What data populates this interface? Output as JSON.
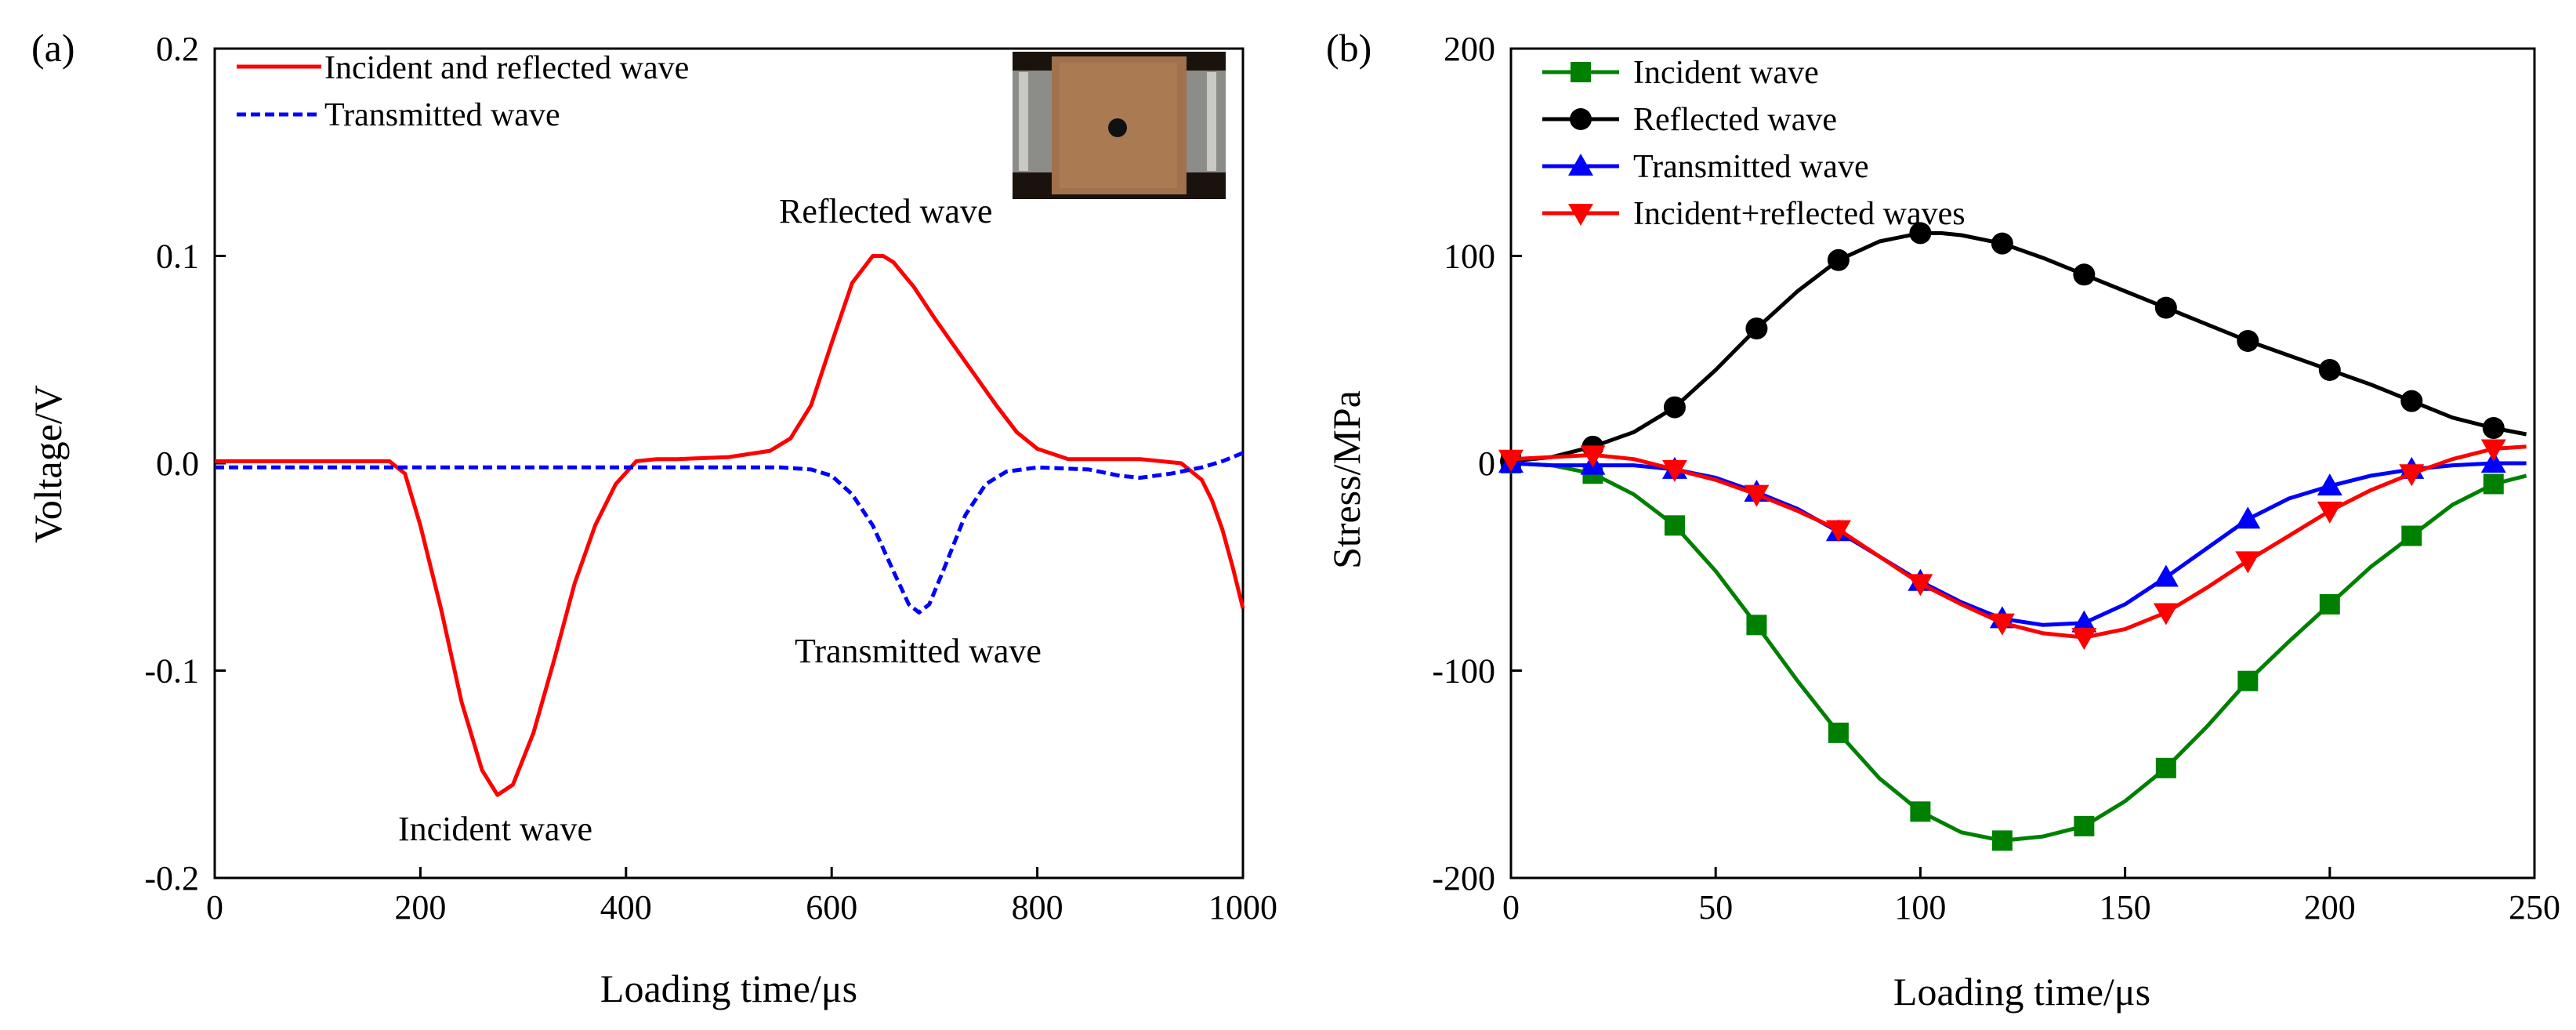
{
  "panels": {
    "a": "(a)",
    "b": "(b)"
  },
  "inset_photo": {
    "kind": "photo of specimen between bars",
    "colors": {
      "specimen": "#a0714c",
      "bar": "#8c8c88",
      "background": "#1a120c",
      "hole": "#111111"
    }
  },
  "chart_data": [
    {
      "type": "line",
      "panel": "(a)",
      "xlabel": "Loading time/μs",
      "ylabel": "Voltage/V",
      "xlim": [
        0,
        1000
      ],
      "ylim": [
        -0.2,
        0.2
      ],
      "xticks": [
        "0",
        "200",
        "400",
        "600",
        "800",
        "1000"
      ],
      "yticks": [
        "-0.2",
        "-0.1",
        "0.0",
        "0.1",
        "0.2"
      ],
      "grid": false,
      "legend_position": "top-left",
      "annotations": [
        "Reflected wave",
        "Transmitted wave",
        "Incident wave"
      ],
      "series": [
        {
          "name": "Incident and reflected wave",
          "color": "#ff0000",
          "dash": "solid",
          "x": [
            0,
            50,
            100,
            150,
            170,
            185,
            200,
            220,
            240,
            260,
            275,
            290,
            310,
            330,
            350,
            370,
            390,
            410,
            430,
            450,
            500,
            540,
            560,
            580,
            600,
            620,
            640,
            650,
            660,
            680,
            700,
            720,
            740,
            760,
            780,
            800,
            830,
            860,
            900,
            940,
            960,
            970,
            980,
            990,
            1000
          ],
          "y": [
            0.001,
            0.001,
            0.001,
            0.001,
            0.001,
            -0.005,
            -0.03,
            -0.07,
            -0.115,
            -0.148,
            -0.16,
            -0.155,
            -0.13,
            -0.095,
            -0.058,
            -0.03,
            -0.01,
            0.001,
            0.002,
            0.002,
            0.003,
            0.006,
            0.012,
            0.028,
            0.058,
            0.087,
            0.1,
            0.1,
            0.097,
            0.085,
            0.07,
            0.056,
            0.042,
            0.028,
            0.015,
            0.007,
            0.002,
            0.002,
            0.002,
            0.0,
            -0.008,
            -0.018,
            -0.032,
            -0.05,
            -0.07
          ]
        },
        {
          "name": "Transmitted wave",
          "color": "#0000ff",
          "dash": "dashed",
          "x": [
            0,
            100,
            200,
            300,
            400,
            500,
            550,
            580,
            600,
            620,
            640,
            660,
            675,
            685,
            695,
            710,
            730,
            750,
            770,
            800,
            850,
            880,
            900,
            930,
            960,
            980,
            1000
          ],
          "y": [
            -0.002,
            -0.002,
            -0.002,
            -0.002,
            -0.002,
            -0.002,
            -0.002,
            -0.003,
            -0.006,
            -0.015,
            -0.03,
            -0.052,
            -0.068,
            -0.072,
            -0.068,
            -0.05,
            -0.025,
            -0.01,
            -0.004,
            -0.002,
            -0.003,
            -0.006,
            -0.007,
            -0.005,
            -0.002,
            0.001,
            0.005
          ]
        }
      ]
    },
    {
      "type": "line",
      "panel": "(b)",
      "xlabel": "Loading time/μs",
      "ylabel": "Stress/MPa",
      "xlim": [
        0,
        250
      ],
      "ylim": [
        -200,
        200
      ],
      "xticks": [
        "0",
        "50",
        "100",
        "150",
        "200",
        "250"
      ],
      "yticks": [
        "-200",
        "-100",
        "0",
        "100",
        "200"
      ],
      "grid": false,
      "legend_position": "top-left",
      "series": [
        {
          "name": "Incident wave",
          "color": "#008000",
          "marker": "square",
          "x": [
            0,
            10,
            20,
            30,
            40,
            50,
            60,
            70,
            80,
            90,
            100,
            110,
            120,
            130,
            140,
            150,
            160,
            170,
            180,
            190,
            200,
            210,
            220,
            230,
            240,
            248
          ],
          "y": [
            0,
            -1,
            -5,
            -15,
            -30,
            -52,
            -78,
            -105,
            -130,
            -152,
            -168,
            -178,
            -182,
            -180,
            -175,
            -163,
            -147,
            -127,
            -105,
            -86,
            -68,
            -50,
            -35,
            -20,
            -10,
            -6
          ],
          "marker_x": [
            0,
            20,
            40,
            60,
            80,
            100,
            120,
            140,
            160,
            180,
            200,
            220,
            240
          ]
        },
        {
          "name": "Reflected wave",
          "color": "#000000",
          "marker": "circle",
          "x": [
            0,
            10,
            20,
            30,
            40,
            50,
            60,
            70,
            80,
            90,
            100,
            105,
            110,
            120,
            130,
            140,
            150,
            160,
            170,
            180,
            190,
            200,
            210,
            220,
            230,
            240,
            248
          ],
          "y": [
            1,
            3,
            8,
            15,
            27,
            45,
            65,
            83,
            98,
            107,
            111,
            111,
            110,
            106,
            99,
            91,
            83,
            75,
            67,
            59,
            52,
            45,
            38,
            30,
            22,
            17,
            14
          ],
          "marker_x": [
            0,
            20,
            40,
            60,
            80,
            100,
            120,
            140,
            160,
            180,
            200,
            220,
            240
          ]
        },
        {
          "name": "Transmitted wave",
          "color": "#0000ff",
          "marker": "triangle-up",
          "x": [
            0,
            10,
            20,
            30,
            40,
            50,
            60,
            70,
            80,
            90,
            100,
            110,
            120,
            130,
            140,
            150,
            160,
            170,
            180,
            190,
            200,
            210,
            220,
            230,
            240,
            248
          ],
          "y": [
            0,
            -1,
            -1,
            -1,
            -3,
            -7,
            -14,
            -22,
            -33,
            -45,
            -57,
            -67,
            -75,
            -78,
            -77,
            -68,
            -55,
            -41,
            -27,
            -17,
            -11,
            -6,
            -3,
            -1,
            0,
            0
          ],
          "marker_x": [
            0,
            20,
            40,
            60,
            80,
            100,
            120,
            140,
            160,
            180,
            200,
            220,
            240
          ]
        },
        {
          "name": "Incident+reflected waves",
          "color": "#ff0000",
          "marker": "triangle-down",
          "x": [
            0,
            10,
            20,
            30,
            40,
            50,
            60,
            70,
            80,
            90,
            100,
            110,
            120,
            130,
            140,
            150,
            160,
            170,
            180,
            190,
            200,
            210,
            220,
            230,
            240,
            248
          ],
          "y": [
            2,
            3,
            4,
            2,
            -3,
            -8,
            -15,
            -23,
            -32,
            -45,
            -58,
            -68,
            -77,
            -82,
            -84,
            -80,
            -72,
            -60,
            -47,
            -35,
            -23,
            -13,
            -5,
            2,
            7,
            8
          ],
          "marker_x": [
            0,
            20,
            40,
            60,
            80,
            100,
            120,
            140,
            160,
            180,
            200,
            220,
            240
          ]
        }
      ]
    }
  ]
}
